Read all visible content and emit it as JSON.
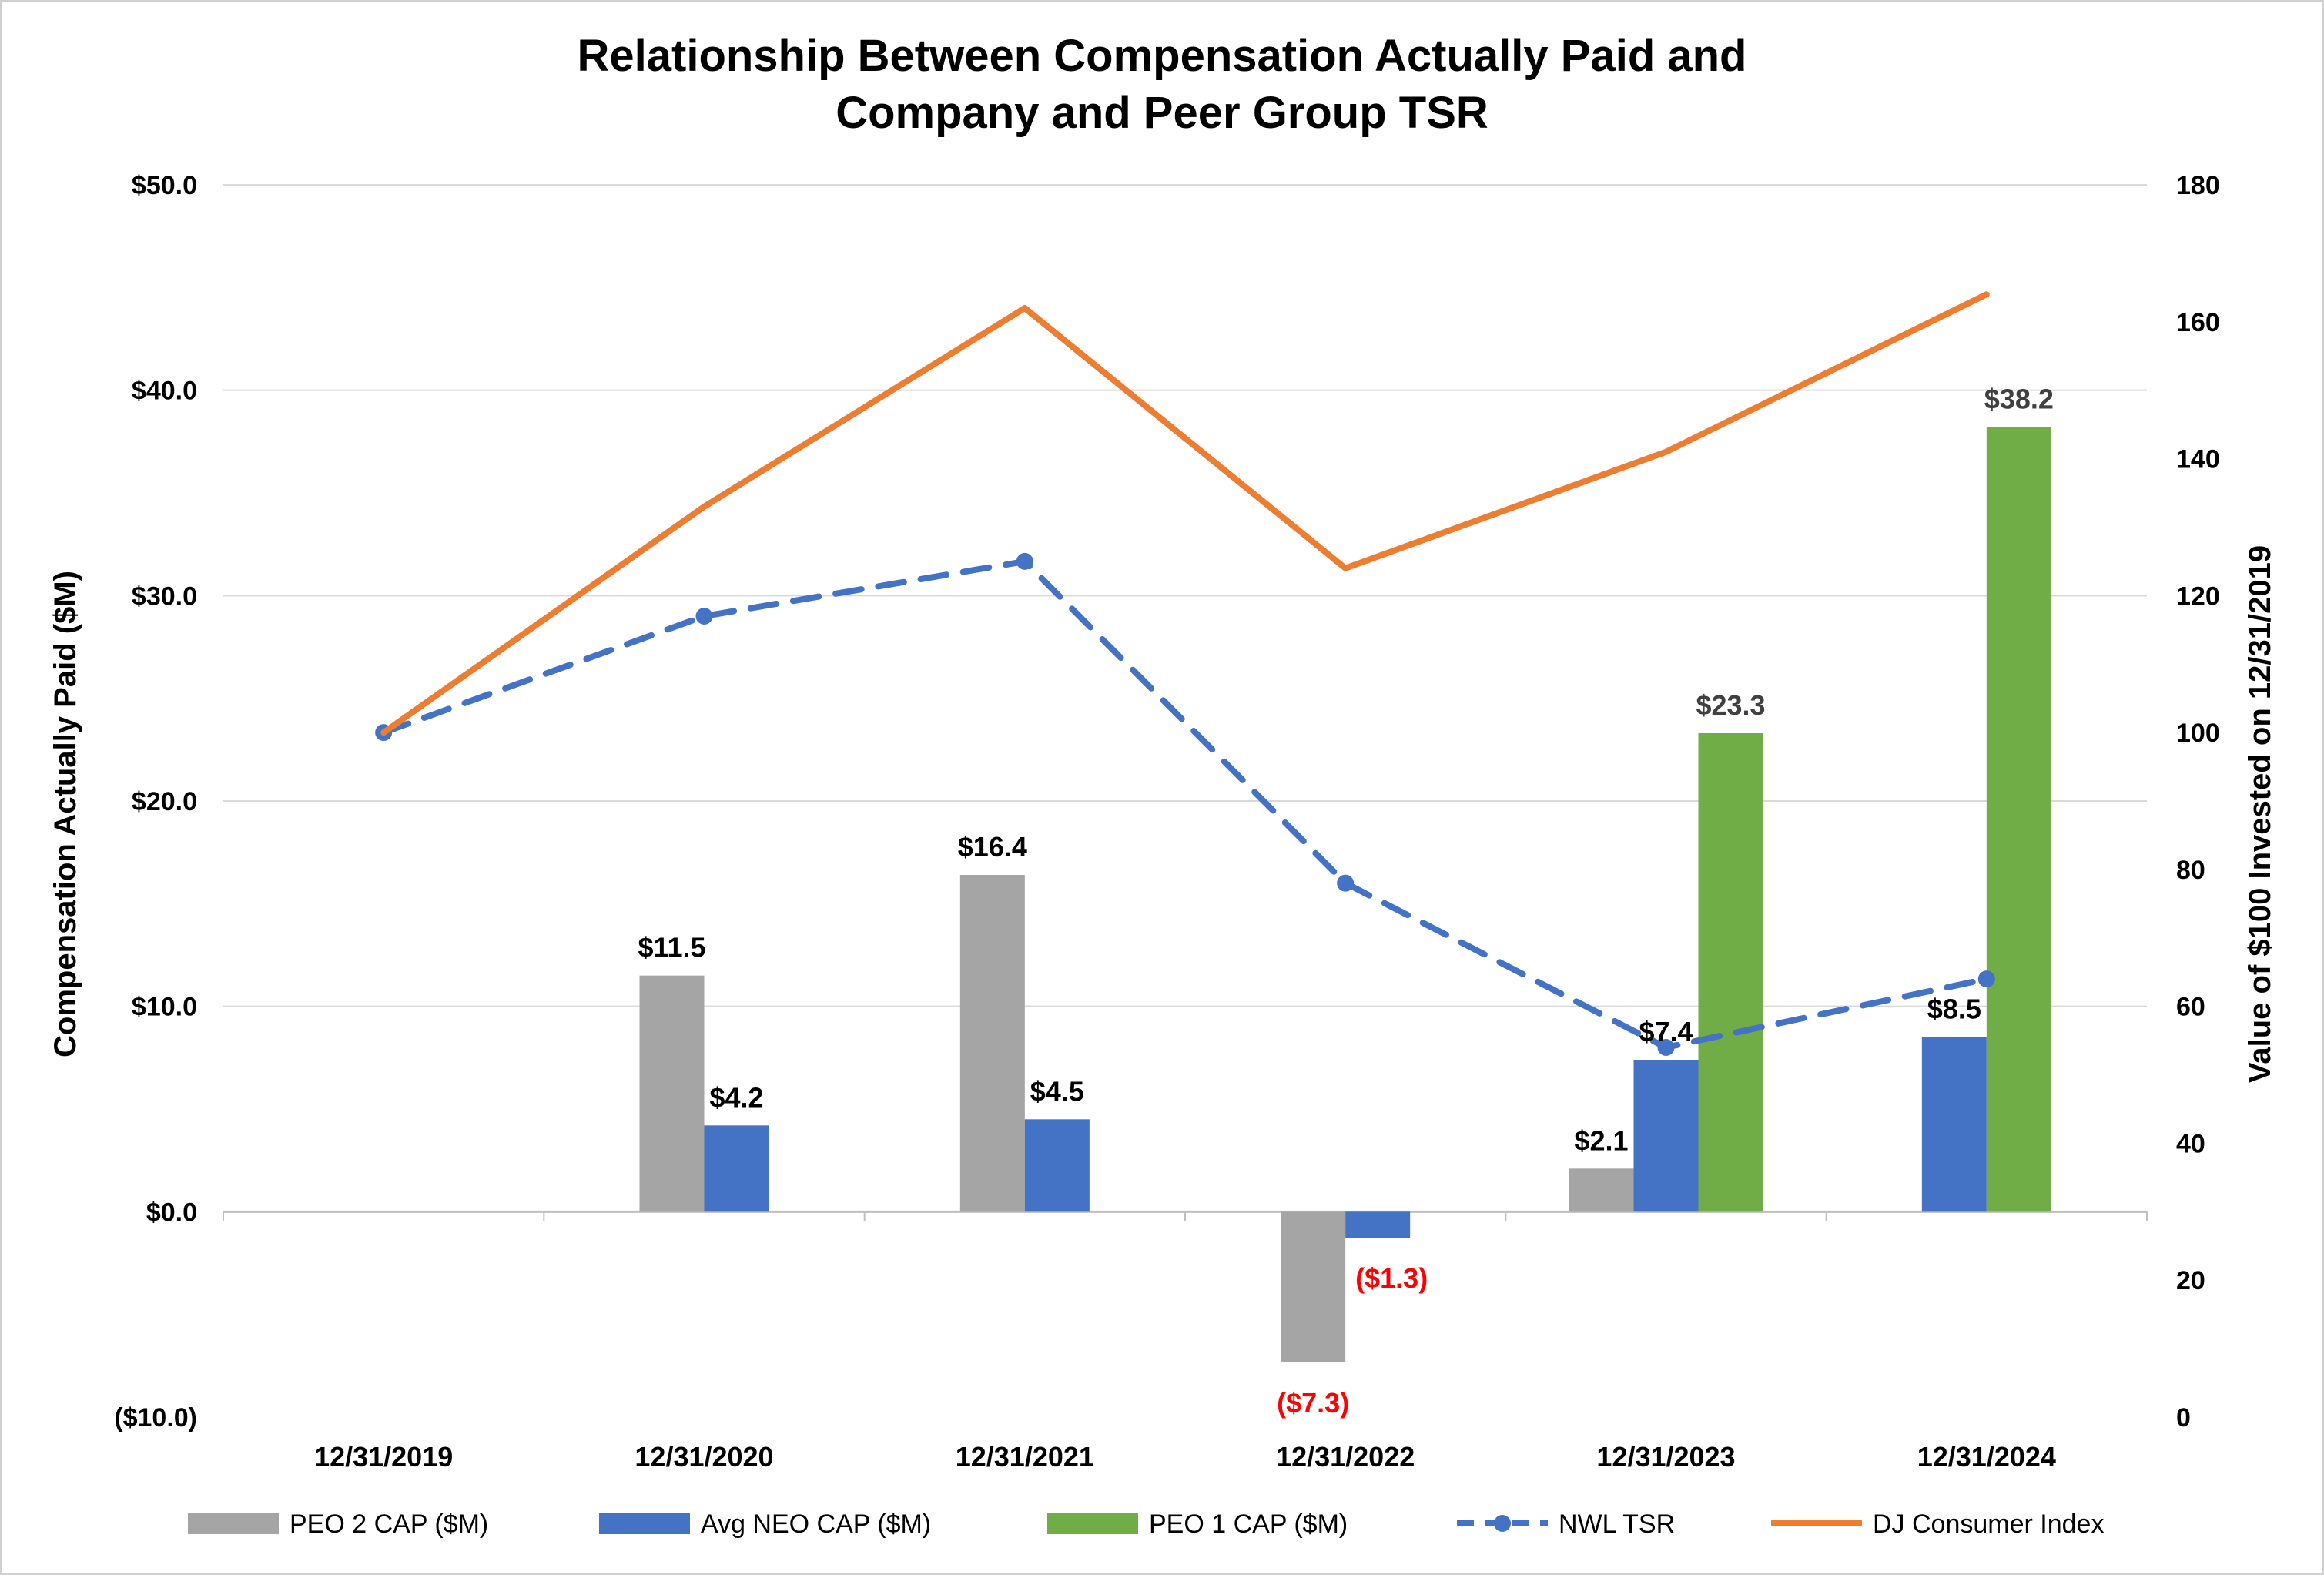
{
  "chart_data": {
    "type": "bar",
    "title": [
      "Relationship Between Compensation Actually Paid and",
      "Company and Peer Group TSR"
    ],
    "ylabel": "Compensation Actually Paid ($M)",
    "y2label": "Value of $100 Invested on 12/31/2019",
    "ylim": [
      -10,
      50
    ],
    "y2lim": [
      0,
      180
    ],
    "yticks": [
      50,
      40,
      30,
      20,
      10,
      0,
      -10
    ],
    "ytick_labels": [
      "$50.0",
      "$40.0",
      "$30.0",
      "$20.0",
      "$10.0",
      "$0.0",
      "($10.0)"
    ],
    "y2ticks": [
      180,
      160,
      140,
      120,
      100,
      80,
      60,
      40,
      20,
      0
    ],
    "y2tick_labels": [
      "180",
      "160",
      "140",
      "120",
      "100",
      "80",
      "60",
      "40",
      "20",
      "0"
    ],
    "grid": true,
    "legend_position": "bottom",
    "categories": [
      "12/31/2019",
      "12/31/2020",
      "12/31/2021",
      "12/31/2022",
      "12/31/2023",
      "12/31/2024"
    ],
    "series": [
      {
        "name": "PEO 2 CAP ($M)",
        "kind": "bar",
        "axis": "left",
        "color": "#a5a5a5",
        "values": [
          null,
          11.5,
          16.4,
          -7.3,
          2.1,
          null
        ],
        "labels": [
          "",
          "$11.5",
          "$16.4",
          "($7.3)",
          "$2.1",
          ""
        ]
      },
      {
        "name": "Avg NEO CAP ($M)",
        "kind": "bar",
        "axis": "left",
        "color": "#4472c4",
        "values": [
          null,
          4.2,
          4.5,
          -1.3,
          7.4,
          8.5
        ],
        "labels": [
          "",
          "$4.2",
          "$4.5",
          "($1.3)",
          "$7.4",
          "$8.5"
        ]
      },
      {
        "name": "PEO 1 CAP ($M)",
        "kind": "bar",
        "axis": "left",
        "color": "#70ad47",
        "values": [
          null,
          null,
          null,
          null,
          23.3,
          38.2
        ],
        "labels": [
          "",
          "",
          "",
          "",
          "$23.3",
          "$38.2"
        ]
      },
      {
        "name": "NWL TSR",
        "kind": "line-dashed-marker",
        "axis": "right",
        "color": "#4472c4",
        "values": [
          100,
          117,
          125,
          78,
          54,
          64
        ]
      },
      {
        "name": "DJ Consumer Index",
        "kind": "line",
        "axis": "right",
        "color": "#ed7d31",
        "values": [
          100,
          133,
          162,
          124,
          141,
          164
        ]
      }
    ],
    "colors": {
      "negative_label": "#ff0000",
      "positive_label": "#000000",
      "green_label": "#404040",
      "grid": "#d9d9d9",
      "axis": "#bfbfbf"
    }
  }
}
